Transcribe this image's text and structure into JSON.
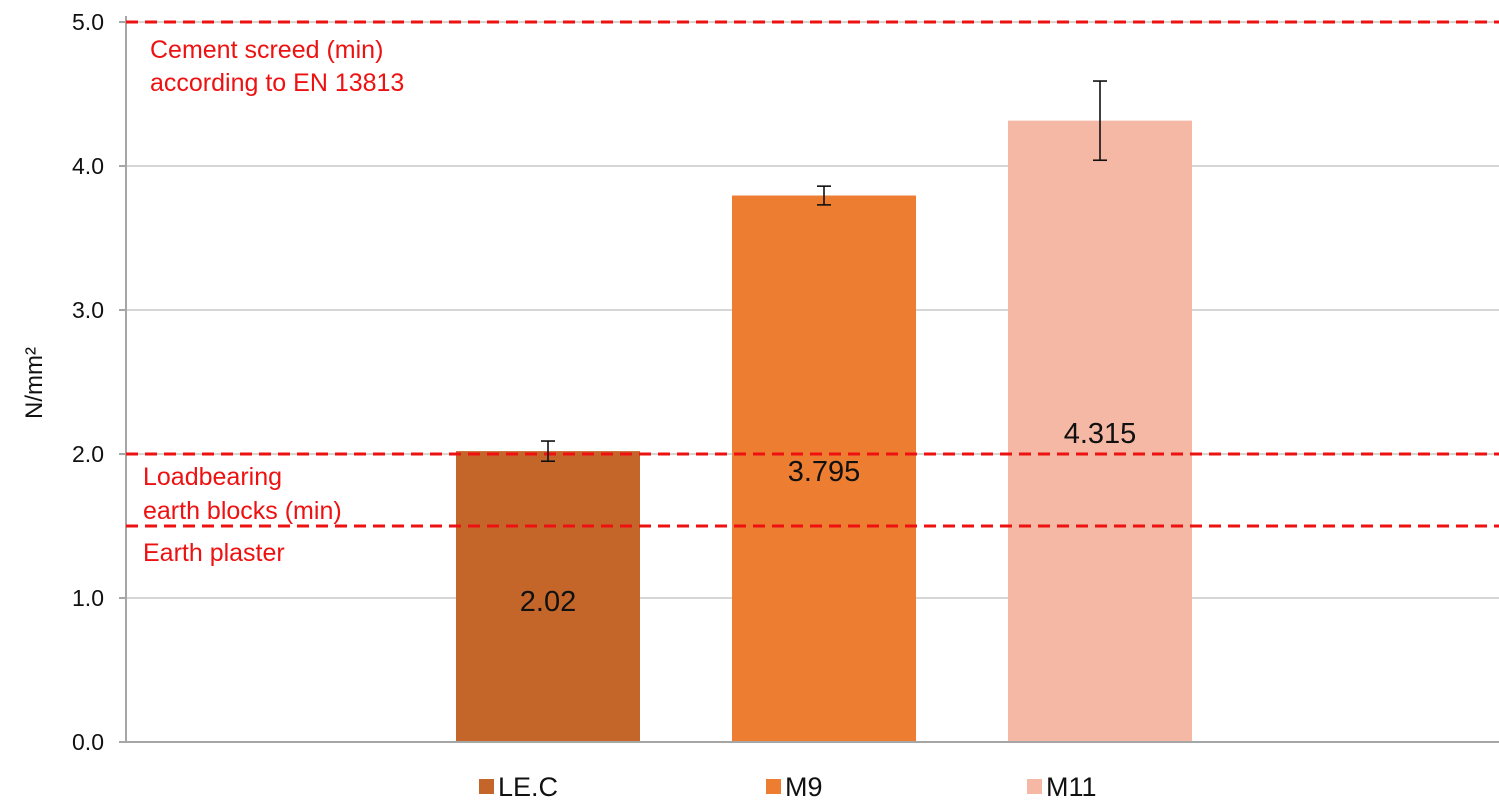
{
  "chart_data": {
    "type": "bar",
    "title": "",
    "xlabel": "",
    "ylabel": "N/mm²",
    "ylim": [
      0,
      5
    ],
    "y_ticks": [
      "0.0",
      "1.0",
      "2.0",
      "3.0",
      "4.0",
      "5.0"
    ],
    "grid": true,
    "legend_position": "bottom",
    "series": [
      {
        "name": "LE.C",
        "value": 2.02,
        "label": "2.02",
        "error": 0.07,
        "color": "#C4662A"
      },
      {
        "name": "M9",
        "value": 3.795,
        "label": "3.795",
        "error": 0.065,
        "color": "#ED7D31"
      },
      {
        "name": "M11",
        "value": 4.315,
        "label": "4.315",
        "error": 0.275,
        "color": "#F4B8A4"
      }
    ],
    "reference_lines": [
      {
        "value": 5.0,
        "label_lines": [
          "Cement screed (min)",
          "according to EN 13813"
        ],
        "color": "#ee1111"
      },
      {
        "value": 2.0,
        "label_lines": [
          "Loadbearing",
          "earth blocks (min)"
        ],
        "color": "#ee1111"
      },
      {
        "value": 1.5,
        "label_lines": [
          "Earth plaster"
        ],
        "color": "#ee1111"
      }
    ]
  }
}
